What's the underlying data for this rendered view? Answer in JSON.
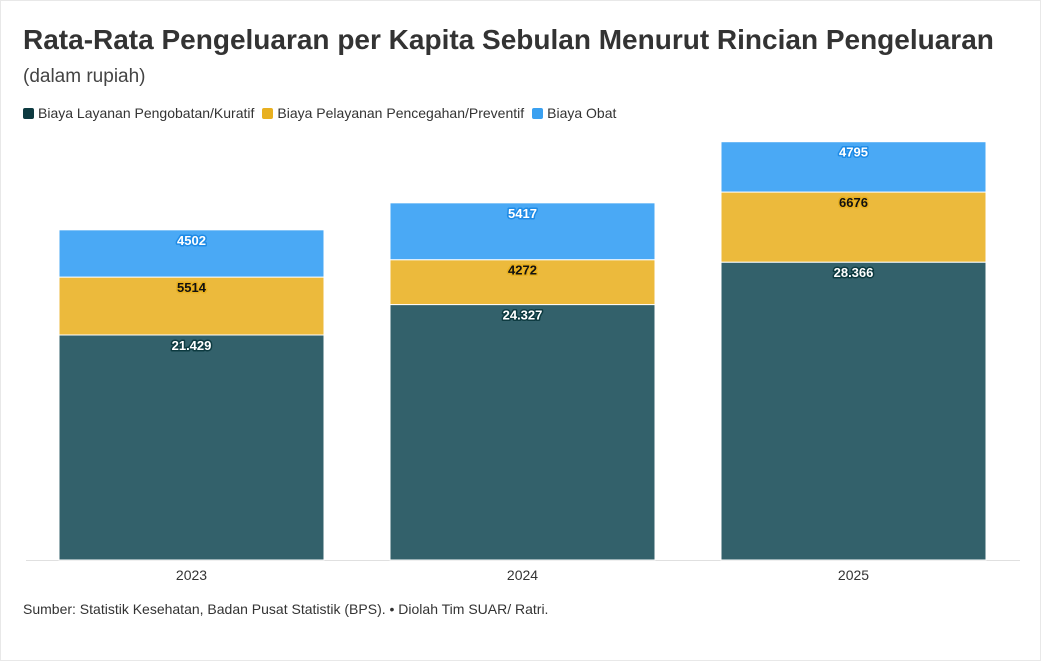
{
  "title": "Rata-Rata Pengeluaran per Kapita Sebulan Menurut Rincian Pengeluaran",
  "subtitle": "(dalam rupiah)",
  "source": "Sumber: Statistik Kesehatan, Badan Pusat Statistik (BPS). • Diolah Tim SUAR/ Ratri.",
  "chart_data": {
    "type": "bar",
    "stacked": true,
    "categories": [
      "2023",
      "2024",
      "2025"
    ],
    "ylim": [
      0,
      40000
    ],
    "grid": false,
    "legend_position": "top-left",
    "series": [
      {
        "name": "Biaya Layanan Pengobatan/Kuratif",
        "color": "#33616b",
        "legend_color": "#0d3a40",
        "label_color": "#ffffff",
        "label_outline": "#0d3a40",
        "values": [
          21429,
          24327,
          28366
        ],
        "labels": [
          "21.429",
          "24.327",
          "28.366"
        ]
      },
      {
        "name": "Biaya Pelayanan Pencegahan/Preventif",
        "color": "#ecba3c",
        "legend_color": "#e8b020",
        "label_color": "#111111",
        "label_outline": "#e8b020",
        "values": [
          5514,
          4272,
          6676
        ],
        "labels": [
          "5514",
          "4272",
          "6676"
        ]
      },
      {
        "name": "Biaya Obat",
        "color": "#4aa9f5",
        "legend_color": "#3aa0f0",
        "label_color": "#ffffff",
        "label_outline": "#1f8be6",
        "values": [
          4502,
          5417,
          4795
        ],
        "labels": [
          "4502",
          "5417",
          "4795"
        ]
      }
    ]
  }
}
